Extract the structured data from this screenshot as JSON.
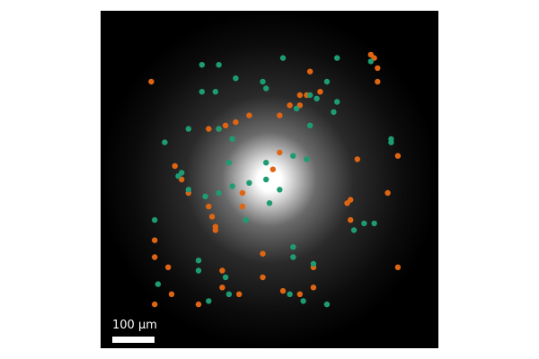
{
  "scale_bar": {
    "label": "100 µm"
  },
  "colors": {
    "background": "#000000",
    "glow": "#ffffff",
    "orange": "#e06512",
    "green": "#1d9c74"
  },
  "markers": {
    "orange": [
      [
        0.15,
        0.21
      ],
      [
        0.24,
        0.5
      ],
      [
        0.26,
        0.54
      ],
      [
        0.22,
        0.46
      ],
      [
        0.32,
        0.35
      ],
      [
        0.35,
        0.35
      ],
      [
        0.37,
        0.34
      ],
      [
        0.4,
        0.33
      ],
      [
        0.44,
        0.31
      ],
      [
        0.53,
        0.31
      ],
      [
        0.56,
        0.28
      ],
      [
        0.59,
        0.25
      ],
      [
        0.59,
        0.28
      ],
      [
        0.61,
        0.25
      ],
      [
        0.65,
        0.24
      ],
      [
        0.62,
        0.18
      ],
      [
        0.8,
        0.13
      ],
      [
        0.81,
        0.14
      ],
      [
        0.82,
        0.17
      ],
      [
        0.82,
        0.21
      ],
      [
        0.76,
        0.44
      ],
      [
        0.88,
        0.43
      ],
      [
        0.85,
        0.54
      ],
      [
        0.73,
        0.57
      ],
      [
        0.74,
        0.56
      ],
      [
        0.74,
        0.62
      ],
      [
        0.51,
        0.47
      ],
      [
        0.53,
        0.42
      ],
      [
        0.42,
        0.54
      ],
      [
        0.42,
        0.58
      ],
      [
        0.32,
        0.58
      ],
      [
        0.33,
        0.61
      ],
      [
        0.34,
        0.64
      ],
      [
        0.34,
        0.65
      ],
      [
        0.16,
        0.68
      ],
      [
        0.16,
        0.73
      ],
      [
        0.2,
        0.76
      ],
      [
        0.21,
        0.84
      ],
      [
        0.16,
        0.87
      ],
      [
        0.29,
        0.87
      ],
      [
        0.36,
        0.77
      ],
      [
        0.36,
        0.82
      ],
      [
        0.41,
        0.84
      ],
      [
        0.48,
        0.72
      ],
      [
        0.48,
        0.79
      ],
      [
        0.54,
        0.83
      ],
      [
        0.59,
        0.84
      ],
      [
        0.63,
        0.82
      ],
      [
        0.63,
        0.76
      ],
      [
        0.88,
        0.76
      ]
    ],
    "green": [
      [
        0.3,
        0.16
      ],
      [
        0.35,
        0.16
      ],
      [
        0.3,
        0.24
      ],
      [
        0.34,
        0.24
      ],
      [
        0.4,
        0.2
      ],
      [
        0.48,
        0.21
      ],
      [
        0.49,
        0.23
      ],
      [
        0.54,
        0.14
      ],
      [
        0.58,
        0.29
      ],
      [
        0.62,
        0.25
      ],
      [
        0.64,
        0.26
      ],
      [
        0.67,
        0.21
      ],
      [
        0.7,
        0.27
      ],
      [
        0.69,
        0.3
      ],
      [
        0.7,
        0.14
      ],
      [
        0.8,
        0.15
      ],
      [
        0.62,
        0.34
      ],
      [
        0.86,
        0.38
      ],
      [
        0.86,
        0.39
      ],
      [
        0.61,
        0.44
      ],
      [
        0.53,
        0.53
      ],
      [
        0.49,
        0.5
      ],
      [
        0.44,
        0.51
      ],
      [
        0.43,
        0.62
      ],
      [
        0.39,
        0.52
      ],
      [
        0.35,
        0.54
      ],
      [
        0.31,
        0.55
      ],
      [
        0.26,
        0.53
      ],
      [
        0.24,
        0.48
      ],
      [
        0.23,
        0.49
      ],
      [
        0.26,
        0.35
      ],
      [
        0.35,
        0.35
      ],
      [
        0.39,
        0.38
      ],
      [
        0.38,
        0.45
      ],
      [
        0.5,
        0.57
      ],
      [
        0.49,
        0.45
      ],
      [
        0.57,
        0.43
      ],
      [
        0.19,
        0.39
      ],
      [
        0.16,
        0.62
      ],
      [
        0.29,
        0.74
      ],
      [
        0.29,
        0.77
      ],
      [
        0.37,
        0.79
      ],
      [
        0.38,
        0.84
      ],
      [
        0.17,
        0.81
      ],
      [
        0.32,
        0.86
      ],
      [
        0.56,
        0.84
      ],
      [
        0.57,
        0.7
      ],
      [
        0.57,
        0.73
      ],
      [
        0.63,
        0.75
      ],
      [
        0.6,
        0.86
      ],
      [
        0.67,
        0.87
      ],
      [
        0.75,
        0.65
      ],
      [
        0.78,
        0.63
      ],
      [
        0.81,
        0.63
      ]
    ]
  }
}
